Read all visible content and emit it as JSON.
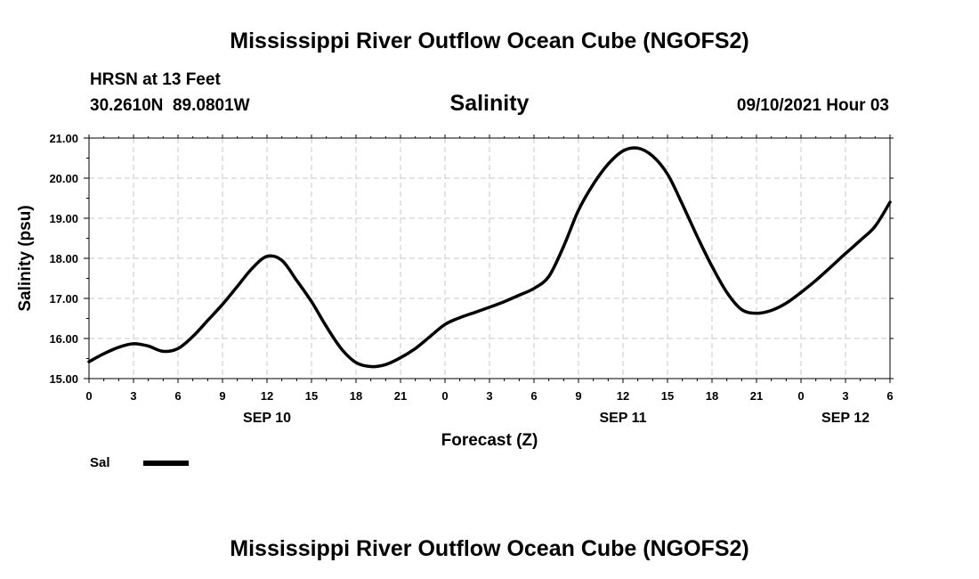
{
  "header": {
    "title": "Mississippi River Outflow Ocean Cube (NGOFS2)",
    "station": "HRSN at 13 Feet",
    "coords": "30.2610N  89.0801W",
    "timestamp": "09/10/2021 Hour 03"
  },
  "footer": {
    "title": "Mississippi River Outflow Ocean Cube (NGOFS2)"
  },
  "chart_data": {
    "type": "line",
    "title": "Salinity",
    "xlabel": "Forecast (Z)",
    "ylabel": "Salinity (psu)",
    "ylim": [
      15.0,
      21.0
    ],
    "xlim_hours": [
      0,
      54
    ],
    "x_unit": "forecast hour from 00Z SEP 10",
    "y_ticks": [
      "15.00",
      "16.00",
      "17.00",
      "18.00",
      "19.00",
      "20.00",
      "21.00"
    ],
    "x_ticks": [
      "0",
      "3",
      "6",
      "9",
      "12",
      "15",
      "18",
      "21",
      "0",
      "3",
      "6",
      "9",
      "12",
      "15",
      "18",
      "21",
      "0",
      "3",
      "6"
    ],
    "date_labels": [
      {
        "text": "SEP 10",
        "hour": 12
      },
      {
        "text": "SEP 11",
        "hour": 36
      },
      {
        "text": "SEP 12",
        "hour": 51
      }
    ],
    "grid": true,
    "legend_position": "bottom-left",
    "series": [
      {
        "name": "Sal",
        "color": "#000000",
        "x": [
          0,
          1,
          2,
          3,
          4,
          5,
          6,
          7,
          8,
          9,
          10,
          11,
          12,
          13,
          14,
          15,
          16,
          17,
          18,
          19,
          20,
          21,
          22,
          23,
          24,
          25,
          26,
          27,
          28,
          29,
          30,
          31,
          32,
          33,
          34,
          35,
          36,
          37,
          38,
          39,
          40,
          41,
          42,
          43,
          44,
          45,
          46,
          47,
          48,
          49,
          50,
          51,
          52,
          53,
          54
        ],
        "y": [
          15.42,
          15.62,
          15.78,
          15.87,
          15.81,
          15.68,
          15.75,
          16.05,
          16.45,
          16.85,
          17.3,
          17.75,
          18.05,
          17.95,
          17.45,
          16.92,
          16.3,
          15.75,
          15.4,
          15.3,
          15.35,
          15.52,
          15.75,
          16.05,
          16.35,
          16.52,
          16.65,
          16.78,
          16.92,
          17.08,
          17.25,
          17.55,
          18.3,
          19.2,
          19.85,
          20.35,
          20.68,
          20.75,
          20.55,
          20.1,
          19.35,
          18.55,
          17.8,
          17.15,
          16.72,
          16.63,
          16.7,
          16.88,
          17.15,
          17.45,
          17.78,
          18.12,
          18.45,
          18.8,
          19.4
        ]
      }
    ]
  }
}
